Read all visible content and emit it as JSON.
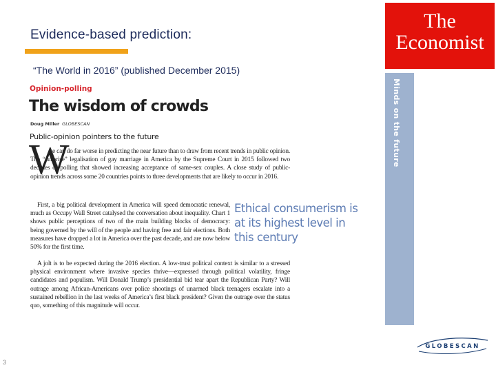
{
  "slide": {
    "title": "Evidence-based prediction:",
    "subtitle": "“The World in 2016” (published December 2015)",
    "page_number": "3"
  },
  "article": {
    "section": "Opinion-polling",
    "headline": "The wisdom of crowds",
    "author": "Doug Miller",
    "author_role": "GLOBESCAN",
    "rubric": "Public-opinion pointers to the future",
    "drop_cap": "W",
    "paragraph_1": "e can do far worse in predicting the near future than to draw from recent trends in public opinion. The “surprise” legalisation of gay marriage in America by the Supreme Court in 2015 followed two decades of polling that showed increasing acceptance of same-sex couples. A close study of public-opinion trends across some 20 countries points to three developments that are likely to occur in 2016.",
    "paragraph_2": "First, a big political development in America will speed democratic renewal, much as Occupy Wall Street catalysed the conversation about inequality. Chart 1 shows public perceptions of two of the main building blocks of democracy: being governed by the will of the people and having free and fair elections. Both measures have dropped a lot in America over the past decade, and are now below 50% for the first time.",
    "paragraph_3": "A jolt is to be expected during the 2016 election. A low-trust political context is similar to a stressed physical environment where invasive species thrive—expressed through political volatility, fringe candidates and populism. Will Donald Trump’s presidential bid tear apart the Republican Party? Will outrage among African-Americans over police shootings of unarmed black teenagers escalate into a sustained rebellion in the last weeks of America’s first black president? Given the outrage over the status quo, something of this magnitude will occur.",
    "pull_quote": "Ethical consumerism is at its highest level in this century"
  },
  "economist": {
    "logo_line_1": "The",
    "logo_line_2": "Economist",
    "strip_text": "Minds on the future",
    "brand_color": "#e3120b",
    "strip_color": "#9eb2cf"
  },
  "globescan": {
    "logo_text": "GLOBESCAN",
    "logo_color": "#1c3f73"
  },
  "colors": {
    "title": "#1c2a5a",
    "accent_bar": "#f0a21a",
    "section_tag": "#d7282f",
    "pull_quote": "#5c7bb3"
  }
}
